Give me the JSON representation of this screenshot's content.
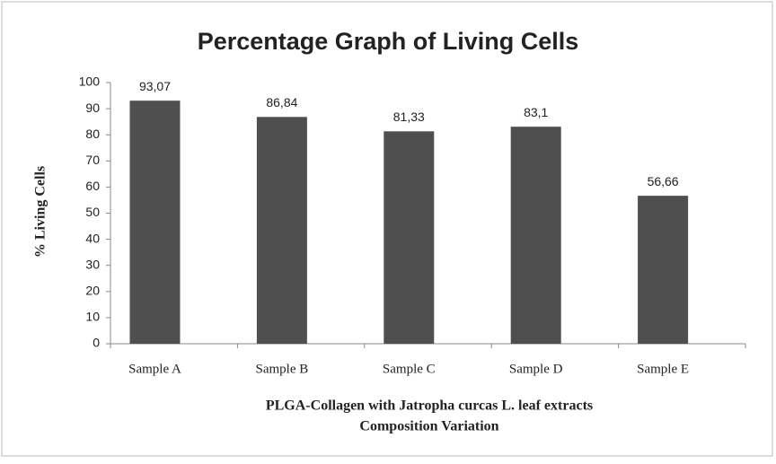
{
  "chart_data": {
    "type": "bar",
    "title": "Percentage Graph of Living Cells",
    "ylabel": "% Living Cells",
    "xlabel": [
      "PLGA-Collagen with Jatropha curcas L. leaf extracts",
      "Composition Variation"
    ],
    "categories": [
      "Sample A",
      "Sample B",
      "Sample C",
      "Sample D",
      "Sample E"
    ],
    "values": [
      93.07,
      86.84,
      81.33,
      83.1,
      56.66
    ],
    "value_labels": [
      "93,07",
      "86,84",
      "81,33",
      "83,1",
      "56,66"
    ],
    "color": "#4f4f4f",
    "ylim": [
      0,
      100
    ],
    "yticks": [
      0,
      10,
      20,
      30,
      40,
      50,
      60,
      70,
      80,
      90,
      100
    ],
    "grid": false
  }
}
